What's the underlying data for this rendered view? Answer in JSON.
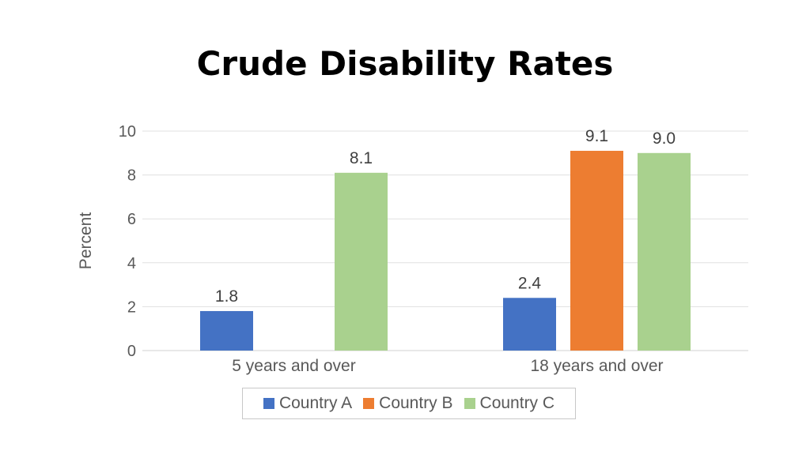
{
  "chart_data": {
    "type": "bar",
    "title": "Crude Disability Rates",
    "ylabel": "Percent",
    "xlabel": "",
    "ylim": [
      0,
      10
    ],
    "yticks": [
      0,
      2,
      4,
      6,
      8,
      10
    ],
    "grid": true,
    "legend_position": "bottom",
    "categories": [
      "5 years and over",
      "18 years and over"
    ],
    "series": [
      {
        "name": "Country A",
        "color": "#4472c4",
        "values": [
          1.8,
          2.4
        ],
        "labels": [
          "1.8",
          "2.4"
        ]
      },
      {
        "name": "Country B",
        "color": "#ed7d31",
        "values": [
          null,
          9.1
        ],
        "labels": [
          "",
          "9.1"
        ]
      },
      {
        "name": "Country C",
        "color": "#a9d18e",
        "values": [
          8.1,
          9.0
        ],
        "labels": [
          "8.1",
          "9.0"
        ]
      }
    ]
  }
}
